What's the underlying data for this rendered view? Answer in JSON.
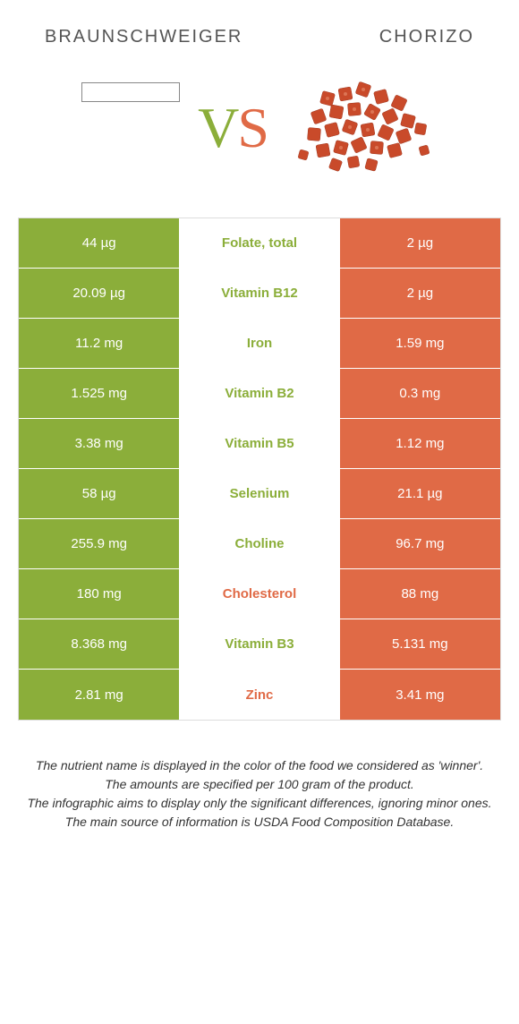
{
  "header": {
    "left_title": "Braunschweiger",
    "right_title": "Chorizo"
  },
  "vs": {
    "v": "V",
    "s": "S"
  },
  "colors": {
    "green": "#8bae3a",
    "orange": "#e06a46",
    "border": "#dddddd",
    "text": "#333333",
    "header_text": "#555555"
  },
  "rows": [
    {
      "left": "44 µg",
      "name": "Folate, total",
      "right": "2 µg",
      "winner": "green"
    },
    {
      "left": "20.09 µg",
      "name": "Vitamin B12",
      "right": "2 µg",
      "winner": "green"
    },
    {
      "left": "11.2 mg",
      "name": "Iron",
      "right": "1.59 mg",
      "winner": "green"
    },
    {
      "left": "1.525 mg",
      "name": "Vitamin B2",
      "right": "0.3 mg",
      "winner": "green"
    },
    {
      "left": "3.38 mg",
      "name": "Vitamin B5",
      "right": "1.12 mg",
      "winner": "green"
    },
    {
      "left": "58 µg",
      "name": "Selenium",
      "right": "21.1 µg",
      "winner": "green"
    },
    {
      "left": "255.9 mg",
      "name": "Choline",
      "right": "96.7 mg",
      "winner": "green"
    },
    {
      "left": "180 mg",
      "name": "Cholesterol",
      "right": "88 mg",
      "winner": "orange"
    },
    {
      "left": "8.368 mg",
      "name": "Vitamin B3",
      "right": "5.131 mg",
      "winner": "green"
    },
    {
      "left": "2.81 mg",
      "name": "Zinc",
      "right": "3.41 mg",
      "winner": "orange"
    }
  ],
  "footer": {
    "line1": "The nutrient name is displayed in the color of the food we considered as 'winner'.",
    "line2": "The amounts are specified per 100 gram of the product.",
    "line3": "The infographic aims to display only the significant differences, ignoring minor ones.",
    "line4": "The main source of information is USDA Food Composition Database."
  }
}
